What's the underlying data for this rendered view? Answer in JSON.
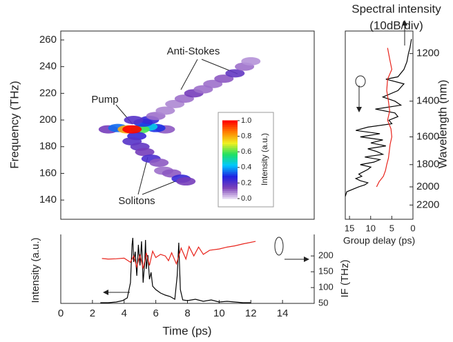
{
  "chart_data": [
    {
      "type": "heatmap",
      "ylabel": "Frequency (THz)",
      "xlim": [
        0,
        16
      ],
      "ylim": [
        125.6,
        266.7
      ],
      "yticks": [
        140,
        160,
        180,
        200,
        220,
        240,
        260
      ],
      "x": [
        3.0,
        3.6,
        4.2,
        6.6,
        6.0,
        5.5,
        5.0,
        5.2,
        5.6,
        4.6,
        4.8,
        4.5,
        5.0,
        5.3,
        5.7,
        6.2,
        6.5,
        7.0,
        7.6,
        7.9,
        6.0,
        6.6,
        7.2,
        7.8,
        8.4,
        9.0,
        9.6,
        10.3,
        11.0,
        11.6,
        12.0,
        4.5
      ],
      "y": [
        193,
        194,
        193,
        193,
        194,
        195,
        193,
        198,
        200,
        200,
        188,
        184,
        180,
        176,
        171,
        168,
        162,
        160,
        156,
        154,
        203,
        207,
        212,
        216,
        220,
        223,
        227,
        231,
        235,
        240,
        244,
        193
      ],
      "values": [
        0.15,
        0.35,
        0.8,
        0.12,
        0.3,
        0.45,
        0.6,
        0.3,
        0.25,
        0.2,
        0.25,
        0.2,
        0.18,
        0.15,
        0.22,
        0.12,
        0.1,
        0.12,
        0.25,
        0.15,
        0.1,
        0.08,
        0.08,
        0.1,
        0.15,
        0.1,
        0.1,
        0.12,
        0.18,
        0.1,
        0.07,
        1.0
      ],
      "colormap": [
        "#ece2f6",
        "#7b3fb8",
        "#2020e0",
        "#00c8ff",
        "#20e060",
        "#f0f020",
        "#ff8000",
        "#ff0000"
      ],
      "colorlim": [
        0,
        1
      ],
      "colorbar_label": "Intensity (a.u.)",
      "colorbar_ticks": [
        {
          "value": 0,
          "label": "0.0"
        },
        {
          "value": 0.2,
          "label": "0.2"
        },
        {
          "value": 0.4,
          "label": "0.4"
        },
        {
          "value": 0.6,
          "label": "0.6"
        },
        {
          "value": 0.8,
          "label": "0.8"
        },
        {
          "value": 1,
          "label": "1.0"
        }
      ],
      "annotations": [
        "Anti-Stokes",
        "Pump",
        "Solitons"
      ]
    },
    {
      "type": "line",
      "title": "Spectral intensity",
      "subtitle": "(10dB/div)",
      "xlabel": "Group delay (ps)",
      "ylabel": "Wavelength (nm)",
      "xlim": [
        16,
        0
      ],
      "xticks": [
        15,
        10,
        5,
        0
      ],
      "x2lim": [
        -45,
        0
      ],
      "ylim": [
        1124,
        2387
      ],
      "yscale": "reciprocal",
      "yticks": [
        1200,
        1400,
        1600,
        1800,
        2000,
        2200
      ],
      "series": [
        {
          "color": "#000000",
          "axis": "x2",
          "y": [
            1150,
            1180,
            1200,
            1230,
            1260,
            1290,
            1300,
            1320,
            1350,
            1380,
            1400,
            1420,
            1440,
            1460,
            1480,
            1500,
            1520,
            1540,
            1560,
            1580,
            1600,
            1620,
            1640,
            1660,
            1680,
            1700,
            1720,
            1740,
            1760,
            1780,
            1800,
            1820,
            1840,
            1860,
            1880,
            1900,
            1920,
            1940,
            1960,
            1980,
            2000,
            2050,
            2100
          ],
          "values": [
            -1,
            -2,
            -3,
            -4,
            -6,
            -10,
            -18,
            -6,
            -10,
            -20,
            -12,
            -8,
            -25,
            -12,
            -10,
            -16,
            -14,
            -30,
            -38,
            -22,
            -35,
            -20,
            -28,
            -18,
            -30,
            -24,
            -20,
            -32,
            -22,
            -26,
            -35,
            -28,
            -30,
            -33,
            -36,
            -34,
            -38,
            -35,
            -30,
            -32,
            -36,
            -44,
            -45
          ]
        },
        {
          "color": "#e8221a",
          "y": [
            1180,
            1220,
            1260,
            1300,
            1350,
            1400,
            1450,
            1500,
            1550,
            1600,
            1650,
            1700,
            1750,
            1800,
            1850,
            1900,
            1950,
            2000
          ],
          "values": [
            6.0,
            5.5,
            5.0,
            6.0,
            6.2,
            5.8,
            5.5,
            6.0,
            5.2,
            5.0,
            5.4,
            5.6,
            5.8,
            6.2,
            6.5,
            7.0,
            8.0,
            8.6
          ]
        }
      ]
    },
    {
      "type": "line",
      "xlabel": "Time (ps)",
      "ylabel": "Intensity (a.u.)",
      "y2label": "IF (THz)",
      "xlim": [
        0,
        16
      ],
      "xticks": [
        0,
        2,
        4,
        6,
        8,
        10,
        12,
        14
      ],
      "ylim": [
        0,
        1
      ],
      "y2lim": [
        50,
        268
      ],
      "y2ticks": [
        50,
        100,
        150,
        200
      ],
      "series": [
        {
          "color": "#000000",
          "x": [
            2.5,
            3.0,
            3.5,
            3.9,
            4.2,
            4.4,
            4.5,
            4.55,
            4.6,
            4.7,
            4.8,
            4.9,
            5.0,
            5.1,
            5.2,
            5.3,
            5.35,
            5.4,
            5.5,
            5.6,
            5.7,
            5.8,
            6.0,
            6.3,
            6.6,
            6.9,
            7.2,
            7.35,
            7.45,
            7.55,
            7.7,
            8.0,
            8.5,
            9.0,
            9.5,
            10.0,
            10.5,
            11.0,
            11.5,
            12.0
          ],
          "values": [
            0.01,
            0.01,
            0.02,
            0.04,
            0.08,
            0.3,
            0.85,
            0.95,
            0.6,
            0.75,
            0.4,
            0.85,
            0.55,
            0.9,
            0.3,
            0.6,
            0.92,
            0.5,
            0.7,
            0.35,
            0.45,
            0.25,
            0.2,
            0.15,
            0.12,
            0.1,
            0.06,
            0.4,
            0.88,
            0.2,
            0.05,
            0.04,
            0.06,
            0.03,
            0.05,
            0.02,
            0.03,
            0.02,
            0.01,
            0.01
          ]
        },
        {
          "color": "#e8221a",
          "axis": "y2",
          "x": [
            2.6,
            3,
            3.5,
            4,
            4.4,
            4.6,
            4.8,
            5.0,
            5.2,
            5.4,
            5.6,
            5.8,
            6.0,
            6.3,
            6.6,
            6.8,
            7.0,
            7.3,
            7.6,
            7.9,
            8.1,
            8.4,
            8.7,
            9.0,
            9.4,
            10,
            10.5,
            11,
            11.5,
            12.3
          ],
          "values": [
            192,
            190,
            191,
            193,
            180,
            200,
            165,
            205,
            160,
            210,
            170,
            215,
            195,
            205,
            200,
            185,
            210,
            175,
            225,
            190,
            230,
            200,
            228,
            205,
            218,
            222,
            228,
            232,
            238,
            246
          ]
        }
      ]
    }
  ]
}
